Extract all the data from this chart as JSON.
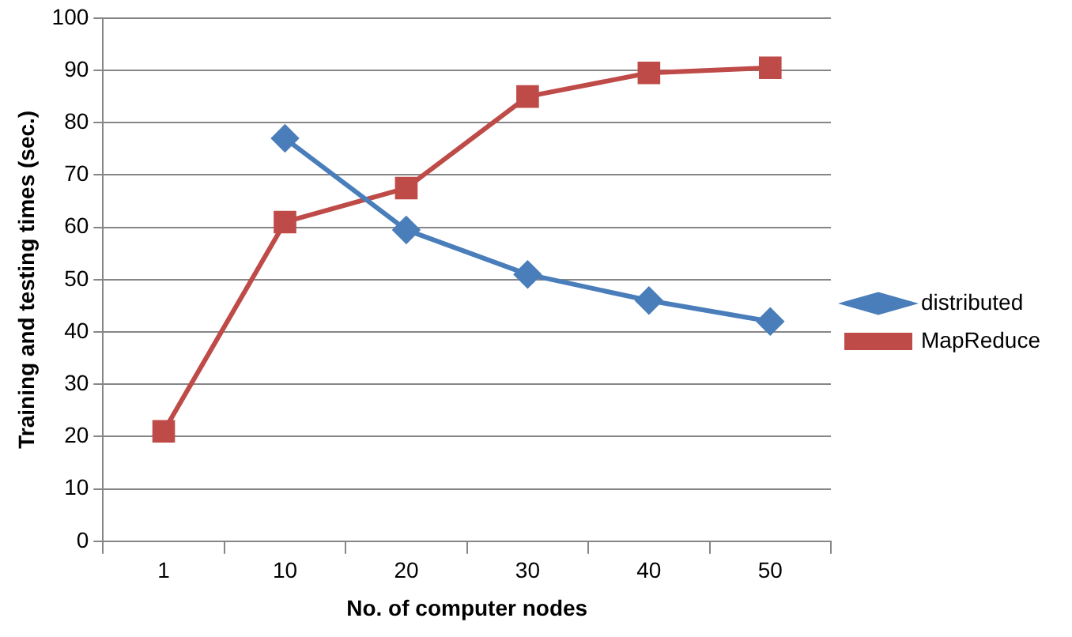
{
  "chart_data": {
    "type": "line",
    "xlabel": "No. of computer nodes",
    "ylabel": "Training and testing times (sec.)",
    "categories": [
      "1",
      "10",
      "20",
      "30",
      "40",
      "50"
    ],
    "series": [
      {
        "name": "distributed",
        "color": "#4a7ebb",
        "marker": "diamond",
        "values": [
          null,
          77,
          59.5,
          51,
          46,
          42
        ]
      },
      {
        "name": "MapReduce",
        "color": "#be4b48",
        "marker": "square",
        "values": [
          21,
          61,
          67.5,
          85,
          89.5,
          90.5
        ]
      }
    ],
    "ylim": [
      0,
      100
    ],
    "yticks": [
      0,
      10,
      20,
      30,
      40,
      50,
      60,
      70,
      80,
      90,
      100
    ],
    "grid": "y",
    "legend": "right"
  }
}
